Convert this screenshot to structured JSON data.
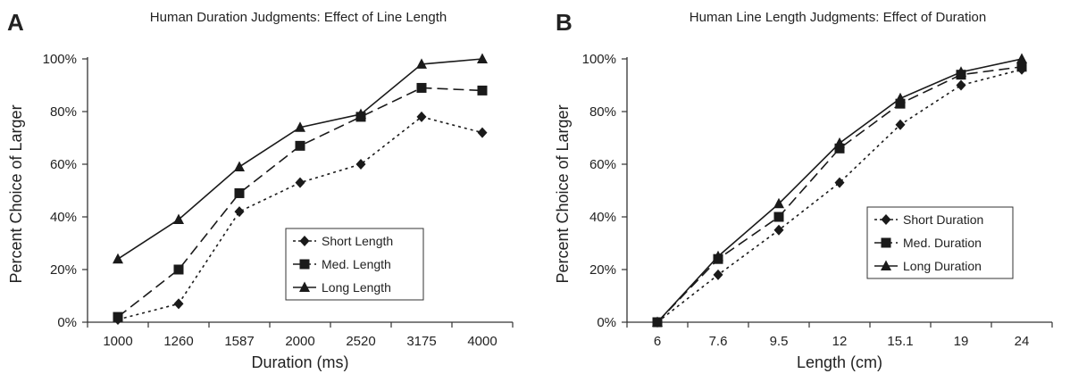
{
  "chart_data": [
    {
      "panel": "A",
      "type": "line",
      "title": "Human Duration Judgments: Effect of Line Length",
      "xlabel": "Duration (ms)",
      "ylabel": "Percent Choice of Larger",
      "categories": [
        "1000",
        "1260",
        "1587",
        "2000",
        "2520",
        "3175",
        "4000"
      ],
      "yticks": [
        "0%",
        "20%",
        "40%",
        "60%",
        "80%",
        "100%"
      ],
      "ylim": [
        0,
        100
      ],
      "grid": false,
      "legend_position": "center-right",
      "series": [
        {
          "name": "Short Length",
          "marker": "diamond",
          "dash": "dotted",
          "values": [
            1,
            7,
            42,
            53,
            60,
            78,
            72
          ]
        },
        {
          "name": "Med. Length",
          "marker": "square",
          "dash": "dashed",
          "values": [
            2,
            20,
            49,
            67,
            78,
            89,
            88
          ]
        },
        {
          "name": "Long Length",
          "marker": "triangle",
          "dash": "solid",
          "values": [
            24,
            39,
            59,
            74,
            79,
            98,
            100
          ]
        }
      ]
    },
    {
      "panel": "B",
      "type": "line",
      "title": "Human Line Length Judgments: Effect of Duration",
      "xlabel": "Length (cm)",
      "ylabel": "Percent Choice of Larger",
      "categories": [
        "6",
        "7.6",
        "9.5",
        "12",
        "15.1",
        "19",
        "24"
      ],
      "yticks": [
        "0%",
        "20%",
        "40%",
        "60%",
        "80%",
        "100%"
      ],
      "ylim": [
        0,
        100
      ],
      "grid": false,
      "legend_position": "center-right",
      "series": [
        {
          "name": "Short Duration",
          "marker": "diamond",
          "dash": "dotted",
          "values": [
            0,
            18,
            35,
            53,
            75,
            90,
            96
          ]
        },
        {
          "name": "Med. Duration",
          "marker": "square",
          "dash": "dashed",
          "values": [
            0,
            24,
            40,
            66,
            83,
            94,
            97
          ]
        },
        {
          "name": "Long Duration",
          "marker": "triangle",
          "dash": "solid",
          "values": [
            0,
            25,
            45,
            68,
            85,
            95,
            100
          ]
        }
      ]
    }
  ],
  "colors": {
    "line": "#1a1a1a",
    "axis": "#333333",
    "background": "#ffffff"
  }
}
